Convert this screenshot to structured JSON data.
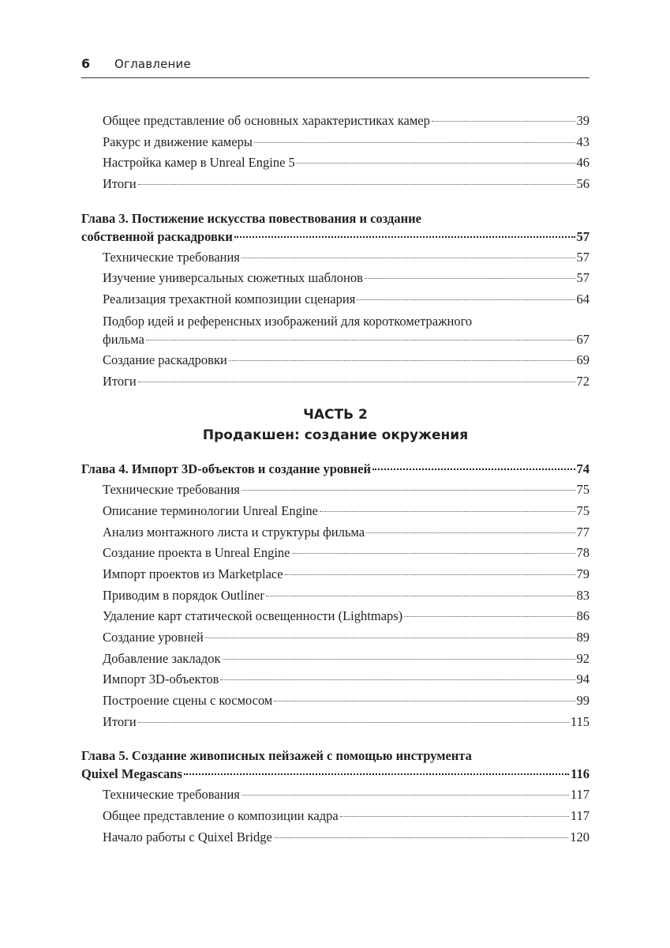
{
  "header": {
    "page_number": "6",
    "title": "Оглавление"
  },
  "blocks": [
    {
      "type": "entries",
      "items": [
        {
          "title_lines": [
            "Общее представление об основных характеристиках камер"
          ],
          "page": "39"
        },
        {
          "title_lines": [
            "Ракурс и движение камеры"
          ],
          "page": "43"
        },
        {
          "title_lines": [
            "Настройка камер в Unreal Engine 5"
          ],
          "page": "46"
        },
        {
          "title_lines": [
            "Итоги"
          ],
          "page": "56"
        }
      ]
    },
    {
      "type": "chapter",
      "title_lines": [
        "Глава 3. Постижение искусства повествования и создание",
        "собственной раскадровки"
      ],
      "page": "57",
      "items": [
        {
          "title_lines": [
            "Технические требования"
          ],
          "page": "57"
        },
        {
          "title_lines": [
            "Изучение универсальных сюжетных шаблонов"
          ],
          "page": "57"
        },
        {
          "title_lines": [
            "Реализация трехактной композиции сценария"
          ],
          "page": "64"
        },
        {
          "title_lines": [
            "Подбор идей и референсных изображений для короткометражного",
            "фильма"
          ],
          "page": "67"
        },
        {
          "title_lines": [
            "Создание раскадровки"
          ],
          "page": "69"
        },
        {
          "title_lines": [
            "Итоги"
          ],
          "page": "72"
        }
      ]
    },
    {
      "type": "part",
      "label": "ЧАСТЬ 2",
      "title": "Продакшен: создание окружения"
    },
    {
      "type": "chapter",
      "title_lines": [
        "Глава 4. Импорт 3D-объектов и создание уровней"
      ],
      "page": "74",
      "items": [
        {
          "title_lines": [
            "Технические требования"
          ],
          "page": "75"
        },
        {
          "title_lines": [
            "Описание терминологии Unreal Engine"
          ],
          "page": "75"
        },
        {
          "title_lines": [
            "Анализ монтажного листа и структуры фильма"
          ],
          "page": "77"
        },
        {
          "title_lines": [
            "Создание проекта в Unreal Engine"
          ],
          "page": "78"
        },
        {
          "title_lines": [
            "Импорт проектов из Marketplace"
          ],
          "page": "79"
        },
        {
          "title_lines": [
            "Приводим в порядок Outliner"
          ],
          "page": "83"
        },
        {
          "title_lines": [
            "Удаление карт статической освещенности (Lightmaps)"
          ],
          "page": "86"
        },
        {
          "title_lines": [
            "Создание уровней"
          ],
          "page": "89"
        },
        {
          "title_lines": [
            "Добавление закладок"
          ],
          "page": "92"
        },
        {
          "title_lines": [
            "Импорт 3D-объектов"
          ],
          "page": "94"
        },
        {
          "title_lines": [
            "Построение сцены с космосом"
          ],
          "page": "99"
        },
        {
          "title_lines": [
            "Итоги"
          ],
          "page": "115"
        }
      ]
    },
    {
      "type": "chapter",
      "title_lines": [
        "Глава 5. Создание живописных пейзажей с помощью инструмента",
        "Quixel Megascans"
      ],
      "page": "116",
      "items": [
        {
          "title_lines": [
            "Технические требования"
          ],
          "page": "117"
        },
        {
          "title_lines": [
            "Общее представление о композиции кадра"
          ],
          "page": "117"
        },
        {
          "title_lines": [
            "Начало работы с Quixel Bridge"
          ],
          "page": "120"
        }
      ]
    }
  ]
}
